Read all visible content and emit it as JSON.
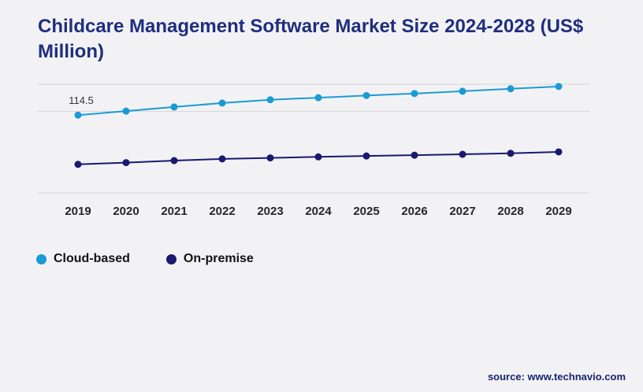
{
  "title": {
    "text": "Childcare Management Software Market Size 2024-2028 (US$ Million)"
  },
  "source_text": "source: www.technavio.com",
  "colors": {
    "background": "#f2f2f5",
    "title": "#1f2e7d",
    "gridline": "#d7d7dc",
    "x_tick_label": "#262626",
    "data_label": "#333333",
    "cloud_based": "#1b9ad6",
    "on_premise": "#191970",
    "source": "#1a2370"
  },
  "chart_data": {
    "type": "line",
    "title": "Childcare Management Software Market Size 2024-2028 (US$ Million)",
    "xlabel": "",
    "ylabel": "",
    "categories": [
      "2019",
      "2020",
      "2021",
      "2022",
      "2023",
      "2024",
      "2025",
      "2026",
      "2027",
      "2028",
      "2029"
    ],
    "series": [
      {
        "name": "Cloud-based",
        "color": "#1b9ad6",
        "values": [
          114.5,
          120.4,
          126.5,
          132.3,
          137.1,
          140.2,
          143.4,
          146.3,
          149.7,
          153.3,
          156.7
        ],
        "labeled_point": {
          "index": 0,
          "label": "114.5"
        }
      },
      {
        "name": "On-premise",
        "color": "#191970",
        "values": [
          42.0,
          44.5,
          47.5,
          50.0,
          51.5,
          53.0,
          54.3,
          55.5,
          56.8,
          58.2,
          60.3
        ]
      }
    ],
    "ylim": [
      0,
      160
    ],
    "gridline_values": [
      160,
      120,
      0
    ],
    "grid": true,
    "legend_position": "bottom-left"
  }
}
